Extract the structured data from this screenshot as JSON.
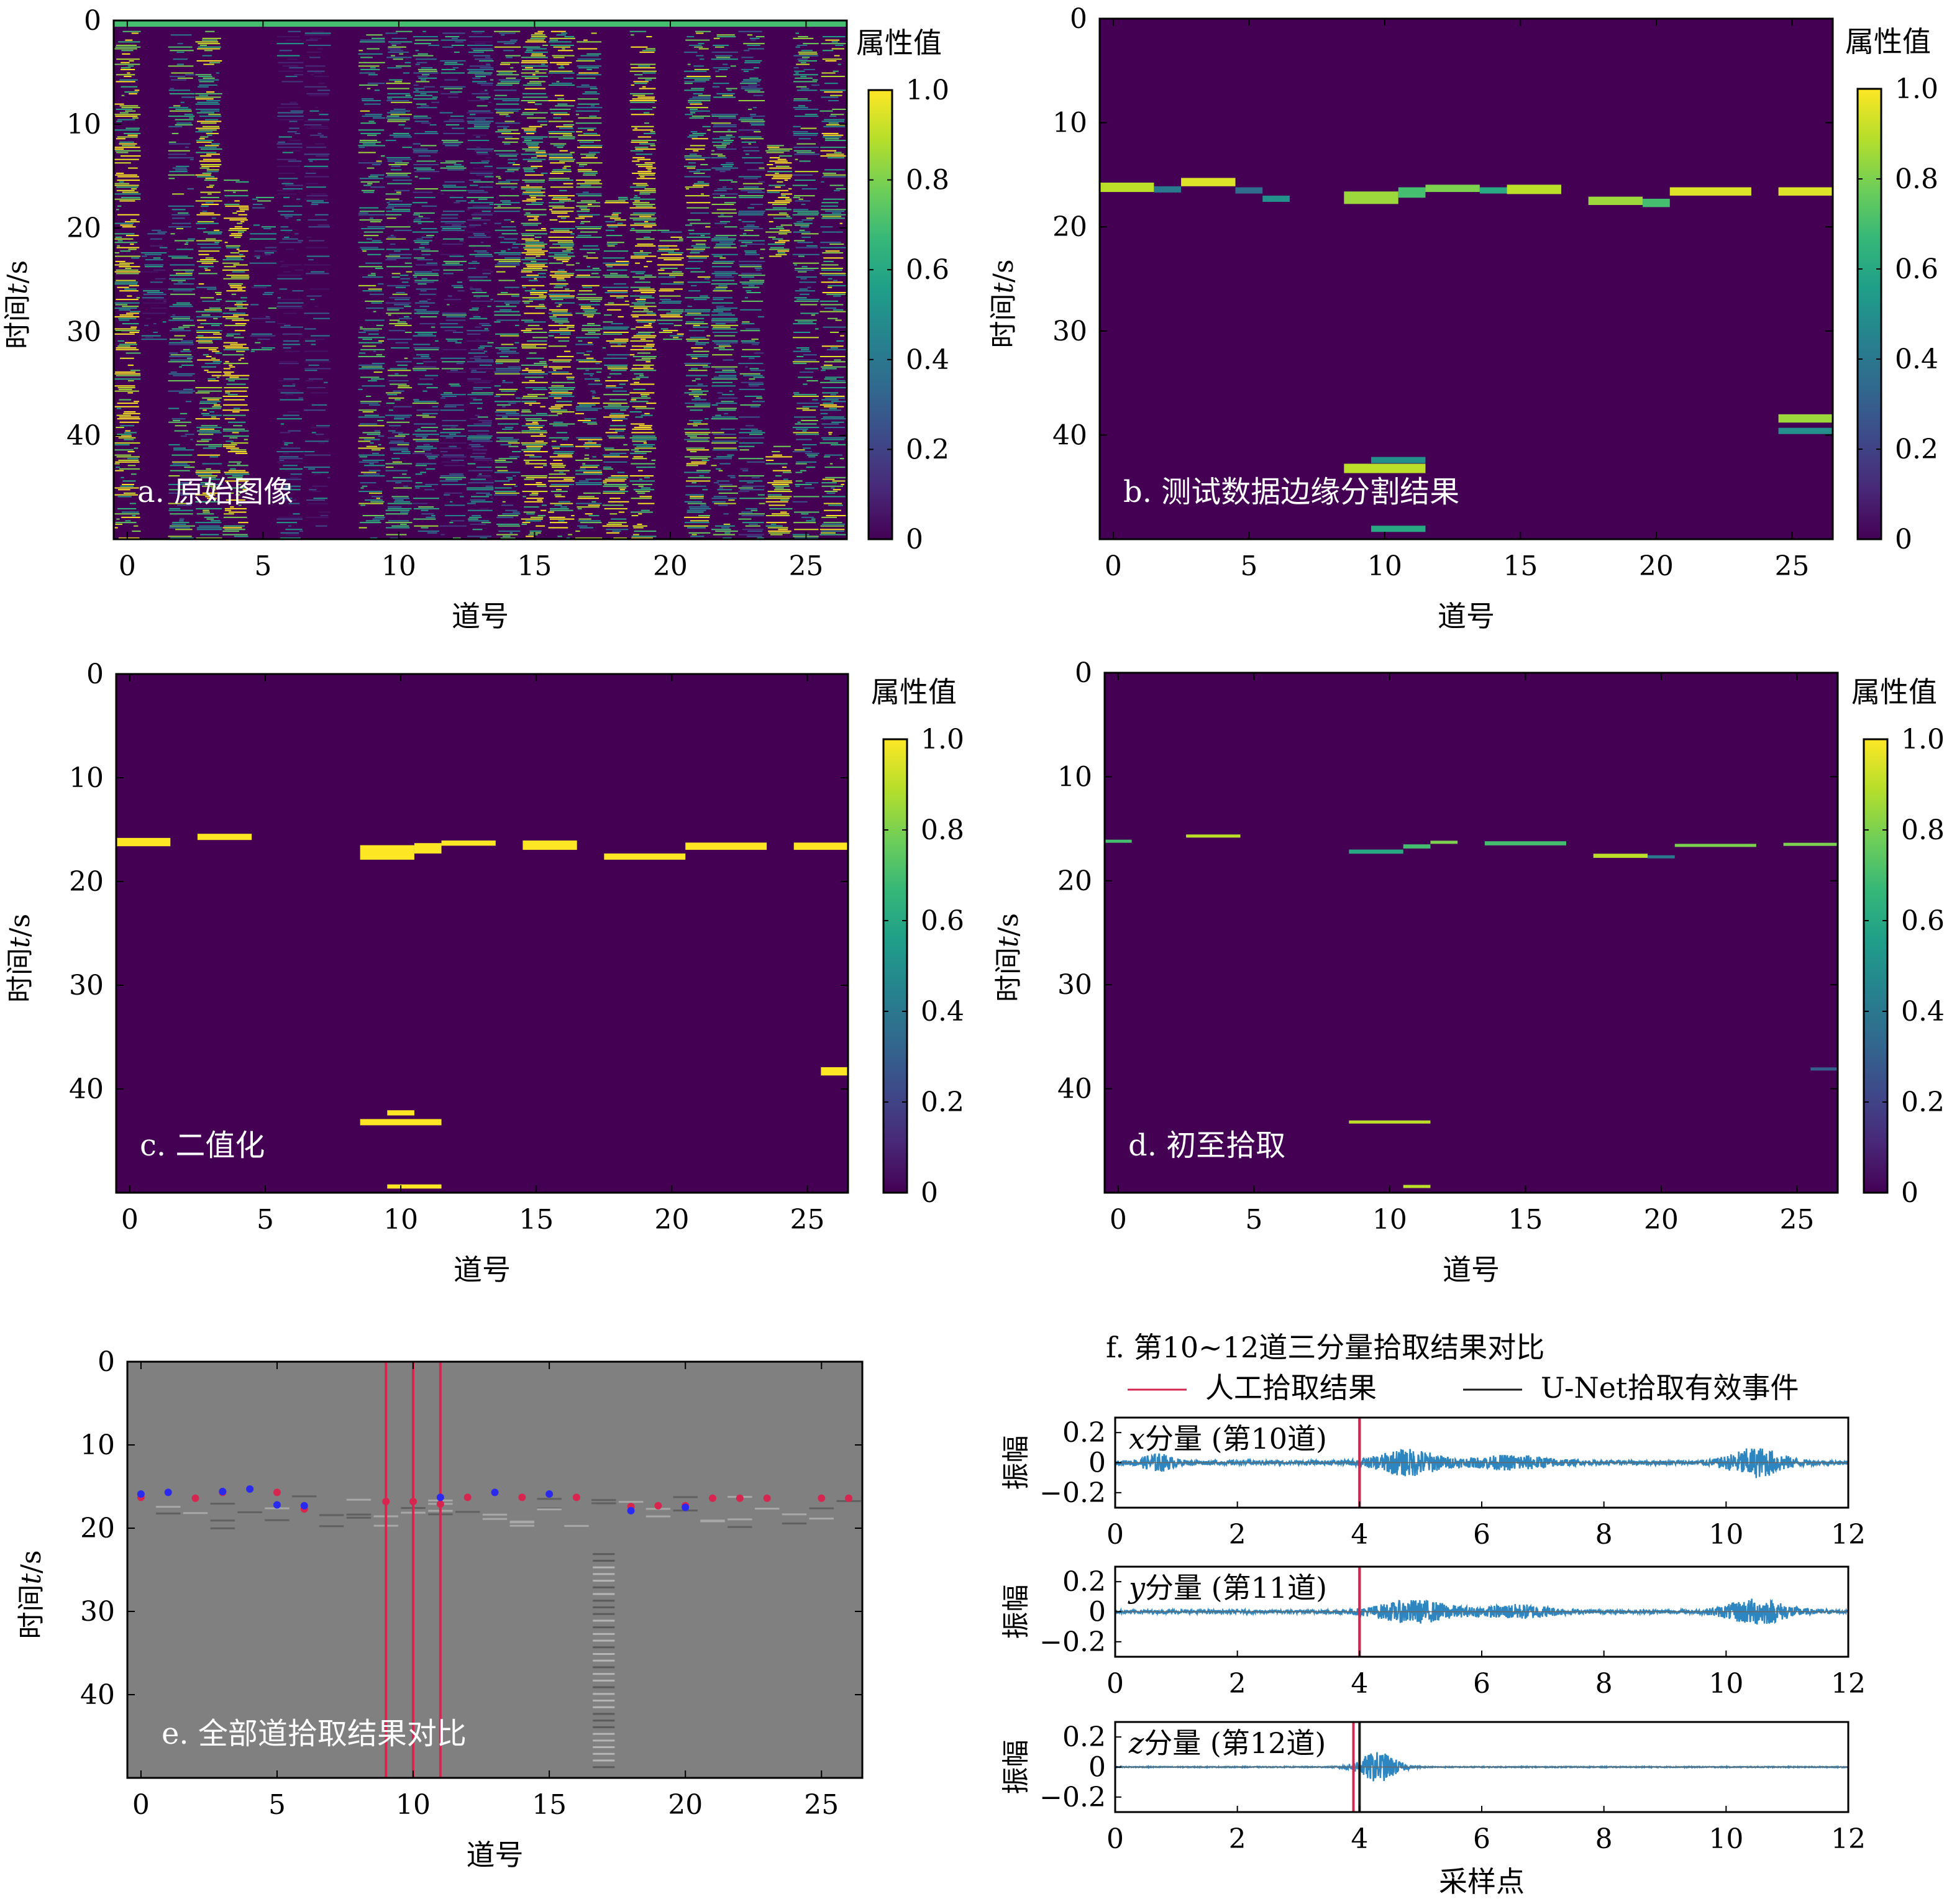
{
  "colorbar_colors": [
    "#440154",
    "#482878",
    "#3e4989",
    "#31688e",
    "#26828e",
    "#1f9e89",
    "#35b779",
    "#6ece58",
    "#b5de2b",
    "#fde725"
  ],
  "bg_color": "#440154",
  "hot_color": "#fde725",
  "gray_bg": "#808080",
  "manual_color": "#d6264f",
  "unet_color": "#1a1a1a",
  "wave_color": "#2e86c1",
  "chart_data": [
    {
      "id": "a",
      "type": "heatmap",
      "title": "a. 原始图像",
      "xlabel": "道号",
      "ylabel_prefix": "时间",
      "ylabel_var": "t",
      "ylabel_suffix": "/s",
      "xlim": [
        -0.5,
        26.5
      ],
      "ylim": [
        0,
        50
      ],
      "x_ticks": [
        0,
        5,
        10,
        15,
        20,
        25
      ],
      "y_ticks": [
        0,
        10,
        20,
        30,
        40
      ],
      "colorbar_title": "属性值",
      "colorbar_ticks": [
        "1.0",
        "0.8",
        "0.6",
        "0.4",
        "0.2",
        "0"
      ],
      "columns": [
        {
          "trace": 0,
          "level": 0.85,
          "density": 0.7,
          "start": 1,
          "end": 50
        },
        {
          "trace": 1,
          "level": 0.3,
          "density": 0.55,
          "start": 20,
          "end": 31
        },
        {
          "trace": 2,
          "level": 0.55,
          "density": 0.5,
          "start": 1,
          "end": 50
        },
        {
          "trace": 3,
          "level": 0.75,
          "density": 0.75,
          "start": 1,
          "end": 50
        },
        {
          "trace": 4,
          "level": 0.9,
          "density": 0.7,
          "start": 15,
          "end": 50
        },
        {
          "trace": 5,
          "level": 0.45,
          "density": 0.5,
          "start": 17,
          "end": 32
        },
        {
          "trace": 6,
          "level": 0.25,
          "density": 0.45,
          "start": 1,
          "end": 50
        },
        {
          "trace": 7,
          "level": 0.2,
          "density": 0.35,
          "start": 1,
          "end": 50
        },
        {
          "trace": 9,
          "level": 0.6,
          "density": 0.55,
          "start": 1,
          "end": 50
        },
        {
          "trace": 10,
          "level": 0.55,
          "density": 0.6,
          "start": 1,
          "end": 50
        },
        {
          "trace": 11,
          "level": 0.5,
          "density": 0.55,
          "start": 1,
          "end": 50
        },
        {
          "trace": 12,
          "level": 0.4,
          "density": 0.45,
          "start": 1,
          "end": 50
        },
        {
          "trace": 13,
          "level": 0.35,
          "density": 0.7,
          "start": 1,
          "end": 50
        },
        {
          "trace": 14,
          "level": 0.6,
          "density": 0.6,
          "start": 1,
          "end": 50
        },
        {
          "trace": 15,
          "level": 0.85,
          "density": 0.75,
          "start": 1,
          "end": 50
        },
        {
          "trace": 16,
          "level": 0.8,
          "density": 0.7,
          "start": 1,
          "end": 50
        },
        {
          "trace": 17,
          "level": 0.7,
          "density": 0.6,
          "start": 1,
          "end": 50
        },
        {
          "trace": 18,
          "level": 0.75,
          "density": 0.6,
          "start": 17,
          "end": 50
        },
        {
          "trace": 19,
          "level": 0.9,
          "density": 0.75,
          "start": 1,
          "end": 50
        },
        {
          "trace": 20,
          "level": 0.75,
          "density": 0.7,
          "start": 20,
          "end": 31
        },
        {
          "trace": 21,
          "level": 0.7,
          "density": 0.6,
          "start": 1,
          "end": 50
        },
        {
          "trace": 22,
          "level": 0.55,
          "density": 0.55,
          "start": 1,
          "end": 50
        },
        {
          "trace": 23,
          "level": 0.5,
          "density": 0.5,
          "start": 1,
          "end": 50
        },
        {
          "trace": 24,
          "level": 0.95,
          "density": 0.85,
          "start": 12,
          "end": 23
        },
        {
          "trace": 24,
          "level": 0.85,
          "density": 0.7,
          "start": 41,
          "end": 50
        },
        {
          "trace": 25,
          "level": 0.6,
          "density": 0.5,
          "start": 1,
          "end": 50
        },
        {
          "trace": 26,
          "level": 0.7,
          "density": 0.55,
          "start": 1,
          "end": 50
        }
      ]
    },
    {
      "id": "b",
      "type": "heatmap",
      "title": "b. 测试数据边缘分割结果",
      "xlabel": "道号",
      "ylabel_prefix": "时间",
      "ylabel_var": "t",
      "ylabel_suffix": "/s",
      "xlim": [
        -0.5,
        26.5
      ],
      "ylim": [
        0,
        50
      ],
      "x_ticks": [
        0,
        5,
        10,
        15,
        20,
        25
      ],
      "y_ticks": [
        0,
        10,
        20,
        30,
        40
      ],
      "colorbar_title": "属性值",
      "colorbar_ticks": [
        "1.0",
        "0.8",
        "0.6",
        "0.4",
        "0.2",
        "0"
      ],
      "segments": [
        {
          "x0": -0.5,
          "x1": 1.5,
          "t": 16.2,
          "h": 0.9,
          "level": 0.9
        },
        {
          "x0": 1.5,
          "x1": 2.5,
          "t": 16.4,
          "h": 0.6,
          "level": 0.4
        },
        {
          "x0": 2.5,
          "x1": 4.5,
          "t": 15.7,
          "h": 0.8,
          "level": 0.95
        },
        {
          "x0": 4.5,
          "x1": 5.5,
          "t": 16.5,
          "h": 0.6,
          "level": 0.35
        },
        {
          "x0": 5.5,
          "x1": 6.5,
          "t": 17.3,
          "h": 0.6,
          "level": 0.5
        },
        {
          "x0": 8.5,
          "x1": 10.5,
          "t": 17.2,
          "h": 1.2,
          "level": 0.85
        },
        {
          "x0": 10.5,
          "x1": 11.5,
          "t": 16.7,
          "h": 1.0,
          "level": 0.7
        },
        {
          "x0": 11.5,
          "x1": 13.5,
          "t": 16.3,
          "h": 0.7,
          "level": 0.8
        },
        {
          "x0": 13.5,
          "x1": 14.5,
          "t": 16.5,
          "h": 0.6,
          "level": 0.6
        },
        {
          "x0": 14.5,
          "x1": 16.5,
          "t": 16.4,
          "h": 0.9,
          "level": 0.9
        },
        {
          "x0": 17.5,
          "x1": 19.5,
          "t": 17.5,
          "h": 0.8,
          "level": 0.85
        },
        {
          "x0": 19.5,
          "x1": 20.5,
          "t": 17.7,
          "h": 0.8,
          "level": 0.7
        },
        {
          "x0": 20.5,
          "x1": 23.5,
          "t": 16.6,
          "h": 0.8,
          "level": 0.95
        },
        {
          "x0": 24.5,
          "x1": 26.5,
          "t": 16.6,
          "h": 0.8,
          "level": 0.95
        },
        {
          "x0": 8.5,
          "x1": 11.5,
          "t": 43.2,
          "h": 0.9,
          "level": 0.9
        },
        {
          "x0": 9.5,
          "x1": 11.5,
          "t": 42.4,
          "h": 0.6,
          "level": 0.5
        },
        {
          "x0": 24.5,
          "x1": 26.5,
          "t": 38.4,
          "h": 0.8,
          "level": 0.85
        },
        {
          "x0": 24.5,
          "x1": 26.5,
          "t": 39.6,
          "h": 0.6,
          "level": 0.5
        },
        {
          "x0": 9.5,
          "x1": 11.5,
          "t": 49.0,
          "h": 0.6,
          "level": 0.6
        }
      ]
    },
    {
      "id": "c",
      "type": "heatmap",
      "title": "c. 二值化",
      "xlabel": "道号",
      "ylabel_prefix": "时间",
      "ylabel_var": "t",
      "ylabel_suffix": "/s",
      "xlim": [
        -0.5,
        26.5
      ],
      "ylim": [
        0,
        50
      ],
      "x_ticks": [
        0,
        5,
        10,
        15,
        20,
        25
      ],
      "y_ticks": [
        0,
        10,
        20,
        30,
        40
      ],
      "colorbar_title": "属性值",
      "colorbar_ticks": [
        "1.0",
        "0.8",
        "0.6",
        "0.4",
        "0.2",
        "0"
      ],
      "segments": [
        {
          "x0": -0.5,
          "x1": 1.5,
          "t": 16.2,
          "h": 0.8,
          "level": 1
        },
        {
          "x0": 2.5,
          "x1": 4.5,
          "t": 15.7,
          "h": 0.6,
          "level": 1
        },
        {
          "x0": 8.5,
          "x1": 10.5,
          "t": 17.2,
          "h": 1.4,
          "level": 1
        },
        {
          "x0": 10.5,
          "x1": 11.5,
          "t": 16.8,
          "h": 1.0,
          "level": 1
        },
        {
          "x0": 11.5,
          "x1": 13.5,
          "t": 16.3,
          "h": 0.5,
          "level": 1
        },
        {
          "x0": 14.5,
          "x1": 16.5,
          "t": 16.5,
          "h": 0.9,
          "level": 1
        },
        {
          "x0": 17.5,
          "x1": 20.5,
          "t": 17.6,
          "h": 0.6,
          "level": 1
        },
        {
          "x0": 20.5,
          "x1": 23.5,
          "t": 16.6,
          "h": 0.7,
          "level": 1
        },
        {
          "x0": 24.5,
          "x1": 26.5,
          "t": 16.6,
          "h": 0.7,
          "level": 1
        },
        {
          "x0": 8.5,
          "x1": 11.5,
          "t": 43.2,
          "h": 0.6,
          "level": 1
        },
        {
          "x0": 9.5,
          "x1": 10.5,
          "t": 42.3,
          "h": 0.5,
          "level": 1
        },
        {
          "x0": 25.5,
          "x1": 26.5,
          "t": 38.3,
          "h": 0.8,
          "level": 1
        },
        {
          "x0": 9.5,
          "x1": 11.5,
          "t": 49.4,
          "h": 0.4,
          "level": 1
        }
      ]
    },
    {
      "id": "d",
      "type": "heatmap",
      "title": "d. 初至拾取",
      "xlabel": "道号",
      "ylabel_prefix": "时间",
      "ylabel_var": "t",
      "ylabel_suffix": "/s",
      "xlim": [
        -0.5,
        26.5
      ],
      "ylim": [
        0,
        50
      ],
      "x_ticks": [
        0,
        5,
        10,
        15,
        20,
        25
      ],
      "y_ticks": [
        0,
        10,
        20,
        30,
        40
      ],
      "colorbar_title": "属性值",
      "colorbar_ticks": [
        "1.0",
        "0.8",
        "0.6",
        "0.4",
        "0.2",
        "0"
      ],
      "segments": [
        {
          "x0": -0.5,
          "x1": 0.5,
          "t": 16.2,
          "h": 0.3,
          "level": 0.7
        },
        {
          "x0": 2.5,
          "x1": 4.5,
          "t": 15.7,
          "h": 0.3,
          "level": 0.9
        },
        {
          "x0": 8.5,
          "x1": 10.5,
          "t": 17.2,
          "h": 0.4,
          "level": 0.6
        },
        {
          "x0": 10.5,
          "x1": 11.5,
          "t": 16.7,
          "h": 0.4,
          "level": 0.7
        },
        {
          "x0": 11.5,
          "x1": 12.5,
          "t": 16.3,
          "h": 0.3,
          "level": 0.8
        },
        {
          "x0": 13.5,
          "x1": 16.5,
          "t": 16.4,
          "h": 0.4,
          "level": 0.7
        },
        {
          "x0": 17.5,
          "x1": 19.5,
          "t": 17.6,
          "h": 0.4,
          "level": 0.9
        },
        {
          "x0": 19.5,
          "x1": 20.5,
          "t": 17.7,
          "h": 0.3,
          "level": 0.4
        },
        {
          "x0": 20.5,
          "x1": 23.5,
          "t": 16.6,
          "h": 0.3,
          "level": 0.8
        },
        {
          "x0": 24.5,
          "x1": 26.5,
          "t": 16.5,
          "h": 0.3,
          "level": 0.8
        },
        {
          "x0": 8.5,
          "x1": 11.5,
          "t": 43.2,
          "h": 0.3,
          "level": 0.9
        },
        {
          "x0": 25.5,
          "x1": 26.5,
          "t": 38.1,
          "h": 0.3,
          "level": 0.3
        },
        {
          "x0": 10.5,
          "x1": 11.5,
          "t": 49.4,
          "h": 0.3,
          "level": 0.9
        }
      ]
    },
    {
      "id": "e",
      "type": "scatter",
      "title": "e. 全部道拾取结果对比",
      "xlabel": "道号",
      "ylabel_prefix": "时间",
      "ylabel_var": "t",
      "ylabel_suffix": "/s",
      "xlim": [
        -0.5,
        26.5
      ],
      "ylim": [
        0,
        50
      ],
      "x_ticks": [
        0,
        5,
        10,
        15,
        20,
        25
      ],
      "y_ticks": [
        0,
        10,
        20,
        30,
        40
      ],
      "manual_lines": [
        9,
        10,
        11
      ],
      "manual_points": [
        {
          "x": 0,
          "t": 16.3
        },
        {
          "x": 2,
          "t": 16.4
        },
        {
          "x": 3,
          "t": 15.7
        },
        {
          "x": 5,
          "t": 15.7
        },
        {
          "x": 6,
          "t": 17.7
        },
        {
          "x": 9,
          "t": 16.8
        },
        {
          "x": 10,
          "t": 16.8
        },
        {
          "x": 11,
          "t": 17.1
        },
        {
          "x": 12,
          "t": 16.3
        },
        {
          "x": 14,
          "t": 16.3
        },
        {
          "x": 16,
          "t": 16.3
        },
        {
          "x": 18,
          "t": 17.4
        },
        {
          "x": 19,
          "t": 17.3
        },
        {
          "x": 20,
          "t": 17.3
        },
        {
          "x": 21,
          "t": 16.4
        },
        {
          "x": 22,
          "t": 16.4
        },
        {
          "x": 23,
          "t": 16.4
        },
        {
          "x": 25,
          "t": 16.4
        },
        {
          "x": 26,
          "t": 16.4
        }
      ],
      "unet_points": [
        {
          "x": 0,
          "t": 15.9
        },
        {
          "x": 1,
          "t": 15.7
        },
        {
          "x": 3,
          "t": 15.6
        },
        {
          "x": 4,
          "t": 15.3
        },
        {
          "x": 5,
          "t": 17.2
        },
        {
          "x": 6,
          "t": 17.3
        },
        {
          "x": 11,
          "t": 16.3
        },
        {
          "x": 13,
          "t": 15.7
        },
        {
          "x": 15,
          "t": 15.9
        },
        {
          "x": 18,
          "t": 17.9
        },
        {
          "x": 20,
          "t": 17.5
        }
      ]
    },
    {
      "id": "f",
      "type": "line",
      "title": "f. 第10~12道三分量拾取结果对比",
      "legend": [
        {
          "label": "人工拾取结果",
          "role": "manual"
        },
        {
          "label": "U-Net拾取有效事件",
          "role": "unet"
        }
      ],
      "xlabel": "采样点",
      "ylabel": "振幅",
      "xlim": [
        0,
        12
      ],
      "ylim": [
        -0.3,
        0.3
      ],
      "x_ticks": [
        0,
        2,
        4,
        6,
        8,
        10,
        12
      ],
      "y_ticks": [
        {
          "v": 0.2,
          "label": "0.2"
        },
        {
          "v": 0,
          "label": "0"
        },
        {
          "v": -0.2,
          "label": "−0.2"
        }
      ],
      "subplots": [
        {
          "var": "x",
          "label": "分量 (第10道)",
          "manual_pick": 4.0,
          "unet_pick": 4.0,
          "bursts": [
            {
              "center": 0.7,
              "width": 0.4,
              "amp": 0.05
            },
            {
              "center": 4.8,
              "width": 0.8,
              "amp": 0.08
            },
            {
              "center": 6.5,
              "width": 1.0,
              "amp": 0.04
            },
            {
              "center": 10.5,
              "width": 0.7,
              "amp": 0.09
            }
          ],
          "noise": 0.015
        },
        {
          "var": "y",
          "label": "分量 (第11道)",
          "manual_pick": 4.0,
          "unet_pick": 4.0,
          "bursts": [
            {
              "center": 4.9,
              "width": 1.0,
              "amp": 0.07
            },
            {
              "center": 6.6,
              "width": 0.9,
              "amp": 0.04
            },
            {
              "center": 10.5,
              "width": 0.8,
              "amp": 0.08
            }
          ],
          "noise": 0.012
        },
        {
          "var": "z",
          "label": "分量 (第12道)",
          "manual_pick": 3.9,
          "unet_pick": 4.0,
          "bursts": [
            {
              "center": 4.3,
              "width": 0.5,
              "amp": 0.1
            }
          ],
          "noise": 0.003
        }
      ]
    }
  ]
}
